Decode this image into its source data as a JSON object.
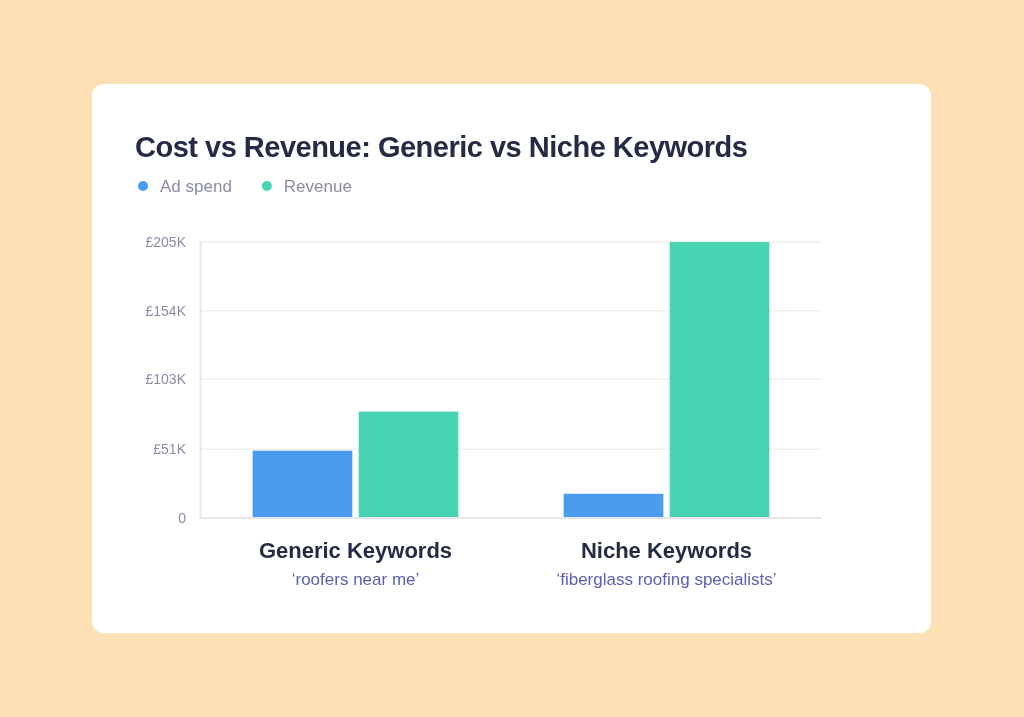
{
  "chart_data": {
    "type": "bar",
    "title": "Cost vs Revenue: Generic vs Niche Keywords",
    "categories": [
      "Generic Keywords\n‘roofers near me’",
      "Niche Keywords\n‘fiberglass roofing specialists’"
    ],
    "series": [
      {
        "name": "Ad spend",
        "color": "#4a9cf0",
        "values": [
          50,
          18
        ]
      },
      {
        "name": "Revenue",
        "color": "#47d3b4",
        "values": [
          79,
          205
        ]
      }
    ],
    "ylim": [
      0,
      205
    ],
    "yticks": [
      0,
      {
        "value": 51,
        "label": "£51K"
      },
      {
        "value": 103,
        "label": "£103K"
      },
      {
        "value": 154,
        "label": "£154K"
      },
      {
        "value": 205,
        "label": "£205K"
      }
    ],
    "grid": "y",
    "legend": "top left"
  }
}
